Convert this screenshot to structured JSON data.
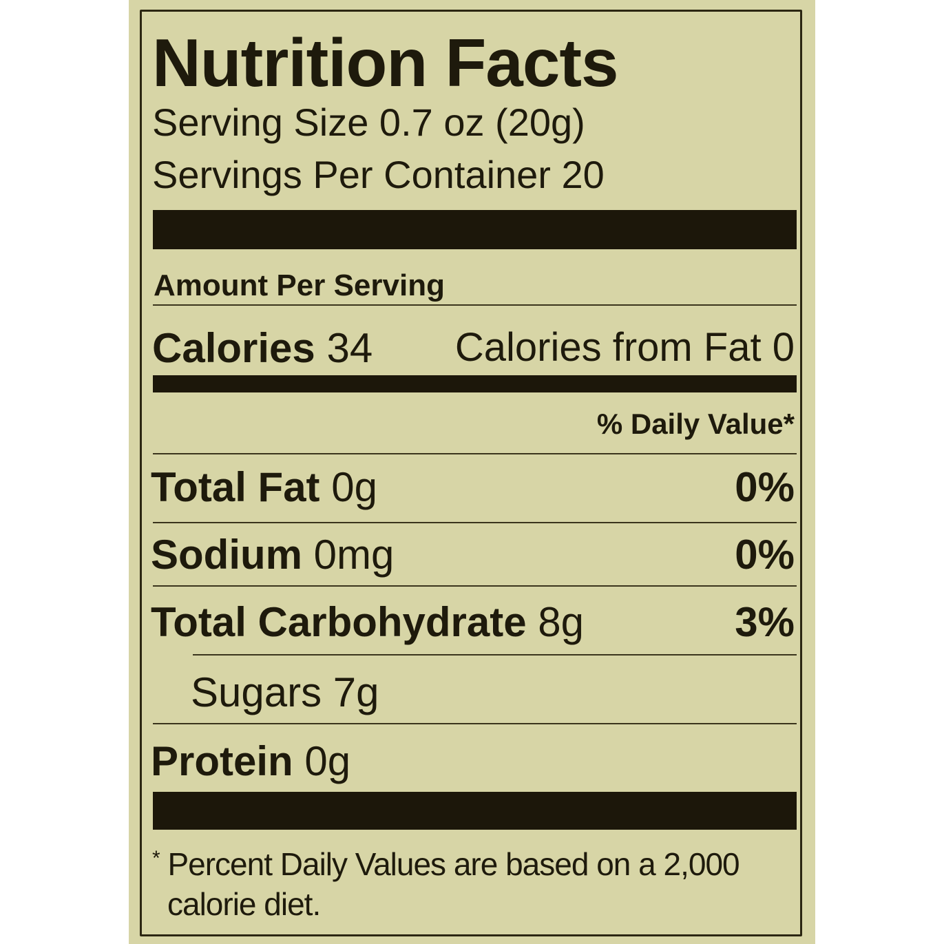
{
  "title": "Nutrition Facts",
  "serving_size": "Serving Size 0.7 oz (20g)",
  "servings_per_container": "Servings Per Container 20",
  "amount_per_serving": "Amount Per Serving",
  "calories": {
    "label": "Calories",
    "value": "34",
    "from_fat": "Calories from Fat 0"
  },
  "daily_value_header": "% Daily Value*",
  "nutrients": [
    {
      "label": "Total Fat",
      "amount": "0g",
      "dv": "0%"
    },
    {
      "label": "Sodium",
      "amount": "0mg",
      "dv": "0%"
    },
    {
      "label": "Total Carbohydrate",
      "amount": "8g",
      "dv": "3%"
    },
    {
      "label": "Sugars",
      "amount": "7g"
    },
    {
      "label": "Protein",
      "amount": "0g"
    }
  ],
  "footnote": {
    "mark": "*",
    "line1": "Percent Daily Values are based on a 2,000",
    "line2": "calorie diet."
  },
  "colors": {
    "label_bg": "#d7d5a6",
    "ink": "#1c170a"
  }
}
